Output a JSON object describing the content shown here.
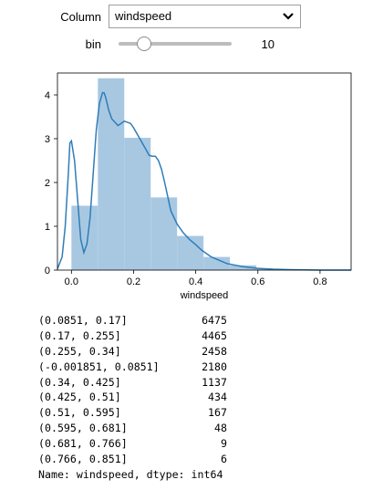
{
  "controls": {
    "column_label": "Column",
    "column_value": "windspeed",
    "bin_label": "bin",
    "bin_value": "10",
    "bin_slider": {
      "min": 1,
      "max": 50,
      "value": 10
    }
  },
  "chart_data": {
    "type": "bar",
    "xlabel": "windspeed",
    "ylabel": "",
    "xlim": [
      -0.045,
      0.9
    ],
    "ylim": [
      0,
      4.5
    ],
    "x_ticks": [
      "0.0",
      "0.2",
      "0.4",
      "0.6",
      "0.8"
    ],
    "y_ticks": [
      "0",
      "1",
      "2",
      "3",
      "4"
    ],
    "bins": [
      {
        "start": 0.0,
        "end": 0.0851,
        "density": 1.47
      },
      {
        "start": 0.0851,
        "end": 0.17,
        "density": 4.38
      },
      {
        "start": 0.17,
        "end": 0.255,
        "density": 3.02
      },
      {
        "start": 0.255,
        "end": 0.34,
        "density": 1.66
      },
      {
        "start": 0.34,
        "end": 0.425,
        "density": 0.78
      },
      {
        "start": 0.425,
        "end": 0.51,
        "density": 0.3
      },
      {
        "start": 0.51,
        "end": 0.595,
        "density": 0.11
      },
      {
        "start": 0.595,
        "end": 0.681,
        "density": 0.03
      },
      {
        "start": 0.681,
        "end": 0.766,
        "density": 0.006
      },
      {
        "start": 0.766,
        "end": 0.851,
        "density": 0.004
      }
    ],
    "kde": {
      "x": [
        -0.045,
        -0.03,
        -0.02,
        -0.01,
        -0.005,
        0.0,
        0.01,
        0.02,
        0.03,
        0.04,
        0.05,
        0.06,
        0.07,
        0.08,
        0.09,
        0.1,
        0.105,
        0.11,
        0.12,
        0.13,
        0.15,
        0.17,
        0.19,
        0.2,
        0.22,
        0.24,
        0.25,
        0.26,
        0.27,
        0.28,
        0.29,
        0.3,
        0.32,
        0.34,
        0.36,
        0.38,
        0.4,
        0.42,
        0.45,
        0.5,
        0.55,
        0.6,
        0.65,
        0.7,
        0.8,
        0.9
      ],
      "y": [
        0.03,
        0.3,
        1.0,
        2.2,
        2.9,
        2.95,
        2.5,
        1.6,
        0.7,
        0.4,
        0.6,
        1.2,
        2.2,
        3.2,
        3.8,
        4.05,
        4.05,
        3.95,
        3.65,
        3.45,
        3.3,
        3.4,
        3.35,
        3.25,
        3.0,
        2.75,
        2.62,
        2.6,
        2.6,
        2.5,
        2.3,
        2.0,
        1.35,
        1.05,
        0.85,
        0.7,
        0.58,
        0.45,
        0.3,
        0.15,
        0.08,
        0.04,
        0.02,
        0.01,
        0.0,
        0.0
      ],
      "color": "#2f7db8"
    },
    "bar_color": "#a8c8e2",
    "line_color": "#2f7db8"
  },
  "output": {
    "rows": [
      {
        "interval": "(0.0851, 0.17]",
        "count": "6475"
      },
      {
        "interval": "(0.17, 0.255]",
        "count": "4465"
      },
      {
        "interval": "(0.255, 0.34]",
        "count": "2458"
      },
      {
        "interval": "(-0.001851, 0.0851]",
        "count": "2180"
      },
      {
        "interval": "(0.34, 0.425]",
        "count": "1137"
      },
      {
        "interval": "(0.425, 0.51]",
        "count": "434"
      },
      {
        "interval": "(0.51, 0.595]",
        "count": "167"
      },
      {
        "interval": "(0.595, 0.681]",
        "count": "48"
      },
      {
        "interval": "(0.681, 0.766]",
        "count": "9"
      },
      {
        "interval": "(0.766, 0.851]",
        "count": "6"
      }
    ],
    "footer": "Name: windspeed, dtype: int64"
  }
}
